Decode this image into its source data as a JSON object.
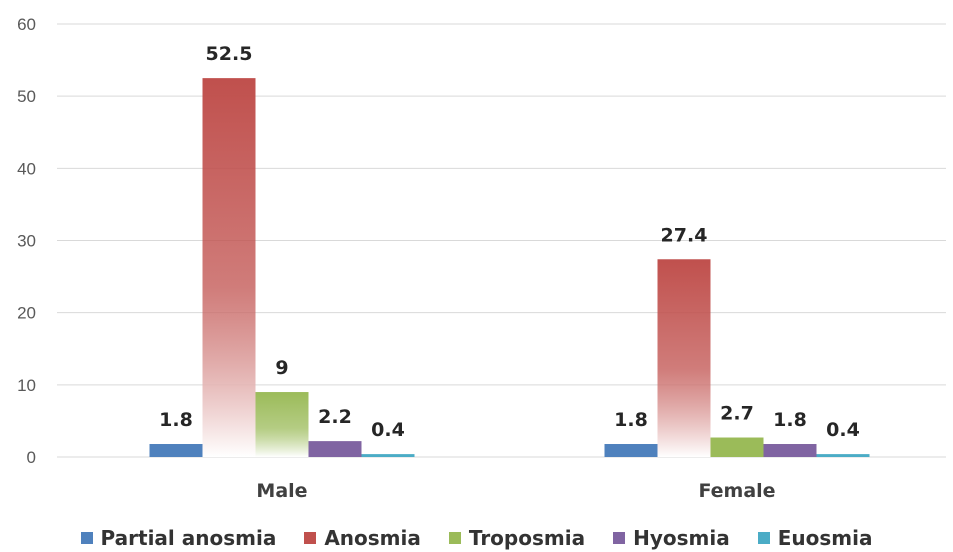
{
  "chart_data": {
    "type": "bar",
    "title": "",
    "xlabel": "",
    "ylabel": "",
    "categories": [
      "Male",
      "Female"
    ],
    "series": [
      {
        "name": "Partial anosmia",
        "values": [
          1.8,
          1.8
        ],
        "labels": [
          "1.8",
          "1.8"
        ],
        "color": "#4F81BD"
      },
      {
        "name": "Anosmia",
        "values": [
          52.5,
          27.4
        ],
        "labels": [
          "52.5",
          "27.4"
        ],
        "color": "#C0504D"
      },
      {
        "name": "Troposmia",
        "values": [
          9,
          2.7
        ],
        "labels": [
          "9",
          "2.7"
        ],
        "color": "#9BBB59"
      },
      {
        "name": "Hyosmia",
        "values": [
          2.2,
          1.8
        ],
        "labels": [
          "2.2",
          "1.8"
        ],
        "color": "#8064A2"
      },
      {
        "name": "Euosmia",
        "values": [
          0.4,
          0.4
        ],
        "labels": [
          "0.4",
          "0.4"
        ],
        "color": "#4BACC6"
      }
    ],
    "ylim": [
      0,
      60
    ],
    "yticks": [
      0,
      10,
      20,
      30,
      40,
      50,
      60
    ],
    "ytick_labels": [
      "0",
      "10",
      "20",
      "30",
      "40",
      "50",
      "60"
    ],
    "grid": true,
    "legend_position": "bottom"
  }
}
